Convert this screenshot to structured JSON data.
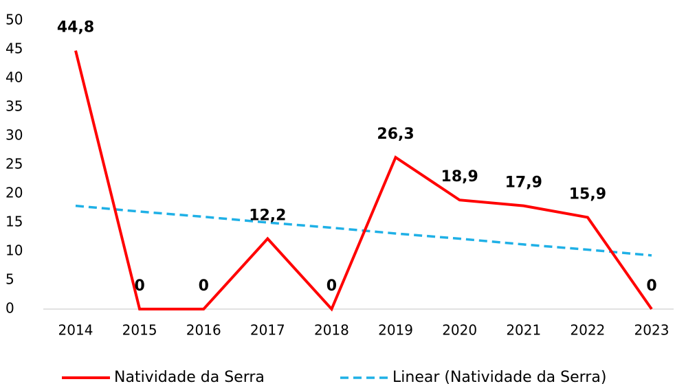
{
  "chart_data": {
    "type": "line",
    "x": [
      "2014",
      "2015",
      "2016",
      "2017",
      "2018",
      "2019",
      "2020",
      "2021",
      "2022",
      "2023"
    ],
    "series": [
      {
        "name": "Natividade da Serra",
        "color": "#ff0000",
        "values": [
          44.8,
          0,
          0,
          12.2,
          0,
          26.3,
          18.9,
          17.9,
          15.9,
          0
        ],
        "value_labels": [
          "44,8",
          "0",
          "0",
          "12,2",
          "0",
          "26,3",
          "18,9",
          "17,9",
          "15,9",
          "0"
        ]
      },
      {
        "name": "Linear (Natividade da Serra)",
        "color": "#1fb0e6",
        "dashed": true,
        "values": [
          17.9,
          16.9,
          16.0,
          15.0,
          14.1,
          13.1,
          12.2,
          11.2,
          10.3,
          9.3
        ]
      }
    ],
    "ylim": [
      0,
      50
    ],
    "yticks": [
      0,
      5,
      10,
      15,
      20,
      25,
      30,
      35,
      40,
      45,
      50
    ],
    "legend": "bottom"
  }
}
